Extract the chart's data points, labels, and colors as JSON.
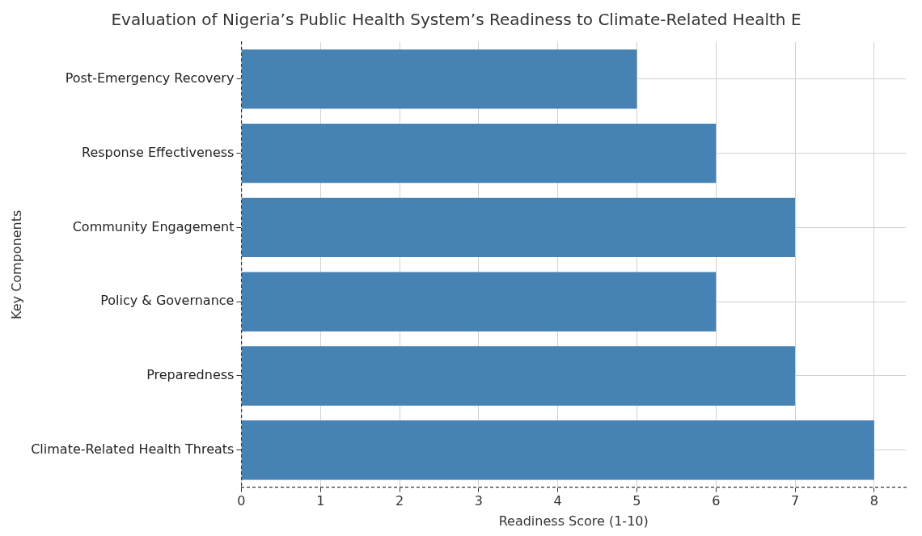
{
  "chart_data": {
    "type": "bar",
    "orientation": "horizontal",
    "title": "Evaluation of Nigeria’s Public Health System’s Readiness to Climate-Related Health E",
    "xlabel": "Readiness Score (1-10)",
    "ylabel": "Key Components",
    "categories": [
      "Post-Emergency Recovery",
      "Response Effectiveness",
      "Community Engagement",
      "Policy & Governance",
      "Preparedness",
      "Climate-Related Health Threats"
    ],
    "values": [
      5,
      6,
      7,
      6,
      7,
      8
    ],
    "color": "#4682b4",
    "xlim": [
      0,
      8.4
    ],
    "xticks": [
      0,
      1,
      2,
      3,
      4,
      5,
      6,
      7,
      8
    ],
    "grid": true
  }
}
